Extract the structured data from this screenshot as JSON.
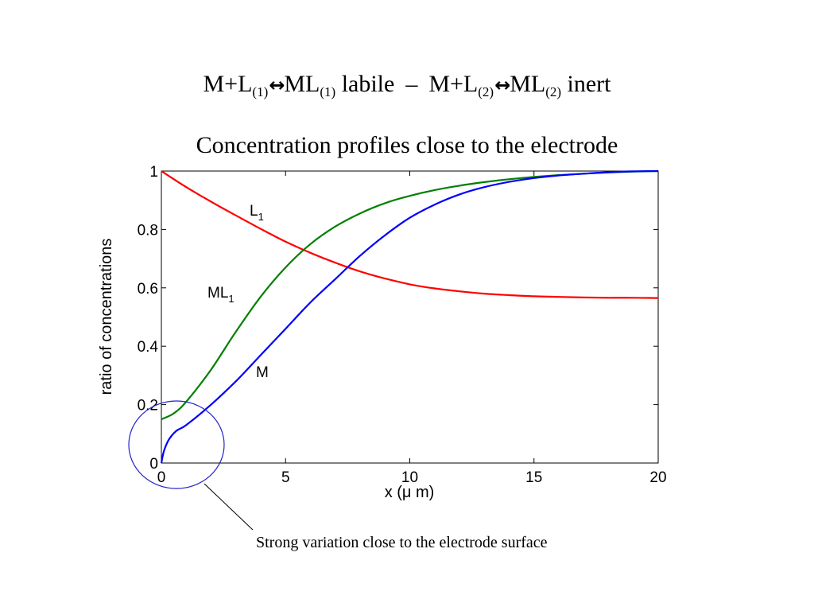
{
  "reaction": {
    "m1": "M+L",
    "sub1": "(1)",
    "arrow1": "↔",
    "ml1": "ML",
    "sub2": "(1)",
    "word1": "labile",
    "dash": "–",
    "m2": "M+L",
    "sub3": "(2)",
    "arrow2": "↔",
    "ml2": "ML",
    "sub4": "(2)",
    "word2": "inert"
  },
  "chart_data": {
    "type": "line",
    "title": "Concentration profiles close to the electrode",
    "xlabel": "x (μ m)",
    "ylabel": "ratio of concentrations",
    "xlim": [
      0,
      20
    ],
    "ylim": [
      0,
      1
    ],
    "xticks": [
      "0",
      "5",
      "10",
      "15",
      "20"
    ],
    "yticks": [
      "0",
      "0.2",
      "0.4",
      "0.6",
      "0.8",
      "1"
    ],
    "grid": false,
    "series": [
      {
        "name": "L1",
        "label_main": "L",
        "label_sub": "1",
        "color": "#ff0000",
        "x": [
          0,
          1,
          2,
          3,
          4,
          5,
          6,
          7,
          8,
          9,
          10,
          11,
          12,
          13,
          14,
          15,
          16,
          17,
          18,
          19,
          20
        ],
        "y": [
          1.0,
          0.945,
          0.895,
          0.848,
          0.802,
          0.758,
          0.72,
          0.686,
          0.656,
          0.632,
          0.612,
          0.598,
          0.588,
          0.58,
          0.575,
          0.571,
          0.569,
          0.567,
          0.566,
          0.566,
          0.565
        ]
      },
      {
        "name": "ML1",
        "label_main": "ML",
        "label_sub": "1",
        "color": "#008000",
        "x": [
          0,
          0.5,
          1,
          2,
          3,
          4,
          5,
          6,
          7,
          8,
          9,
          10,
          11,
          12,
          13,
          14,
          15,
          16,
          17,
          18,
          19,
          20
        ],
        "y": [
          0.15,
          0.17,
          0.21,
          0.32,
          0.45,
          0.57,
          0.67,
          0.75,
          0.81,
          0.855,
          0.89,
          0.915,
          0.935,
          0.95,
          0.962,
          0.972,
          0.98,
          0.986,
          0.991,
          0.995,
          0.998,
          1.0
        ]
      },
      {
        "name": "M",
        "label_main": "M",
        "label_sub": "",
        "color": "#0000ff",
        "x": [
          0,
          0.1,
          0.3,
          0.6,
          1,
          2,
          3,
          4,
          5,
          6,
          7,
          8,
          9,
          10,
          11,
          12,
          13,
          14,
          15,
          16,
          17,
          18,
          19,
          20
        ],
        "y": [
          0.0,
          0.04,
          0.08,
          0.11,
          0.13,
          0.2,
          0.28,
          0.37,
          0.46,
          0.55,
          0.63,
          0.71,
          0.78,
          0.84,
          0.885,
          0.92,
          0.945,
          0.963,
          0.976,
          0.985,
          0.991,
          0.996,
          0.999,
          1.0
        ]
      }
    ],
    "annotation": "Strong variation close to the electrode surface"
  }
}
